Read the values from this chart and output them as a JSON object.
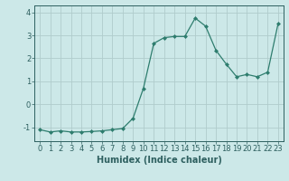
{
  "x": [
    0,
    1,
    2,
    3,
    4,
    5,
    6,
    7,
    8,
    9,
    10,
    11,
    12,
    13,
    14,
    15,
    16,
    17,
    18,
    19,
    20,
    21,
    22,
    23
  ],
  "y": [
    -1.1,
    -1.2,
    -1.15,
    -1.2,
    -1.2,
    -1.18,
    -1.15,
    -1.1,
    -1.05,
    -0.6,
    0.7,
    2.65,
    2.9,
    2.95,
    2.95,
    3.75,
    3.4,
    2.35,
    1.75,
    1.2,
    1.3,
    1.2,
    1.4,
    3.5
  ],
  "line_color": "#2e7d6e",
  "marker": "D",
  "marker_size": 2,
  "bg_color": "#cce8e8",
  "grid_color": "#b0cccc",
  "axis_color": "#2e6060",
  "xlabel": "Humidex (Indice chaleur)",
  "xlabel_fontsize": 7,
  "tick_fontsize": 6,
  "ylim": [
    -1.6,
    4.3
  ],
  "xlim": [
    -0.5,
    23.5
  ],
  "yticks": [
    -1,
    0,
    1,
    2,
    3,
    4
  ],
  "xticks": [
    0,
    1,
    2,
    3,
    4,
    5,
    6,
    7,
    8,
    9,
    10,
    11,
    12,
    13,
    14,
    15,
    16,
    17,
    18,
    19,
    20,
    21,
    22,
    23
  ]
}
